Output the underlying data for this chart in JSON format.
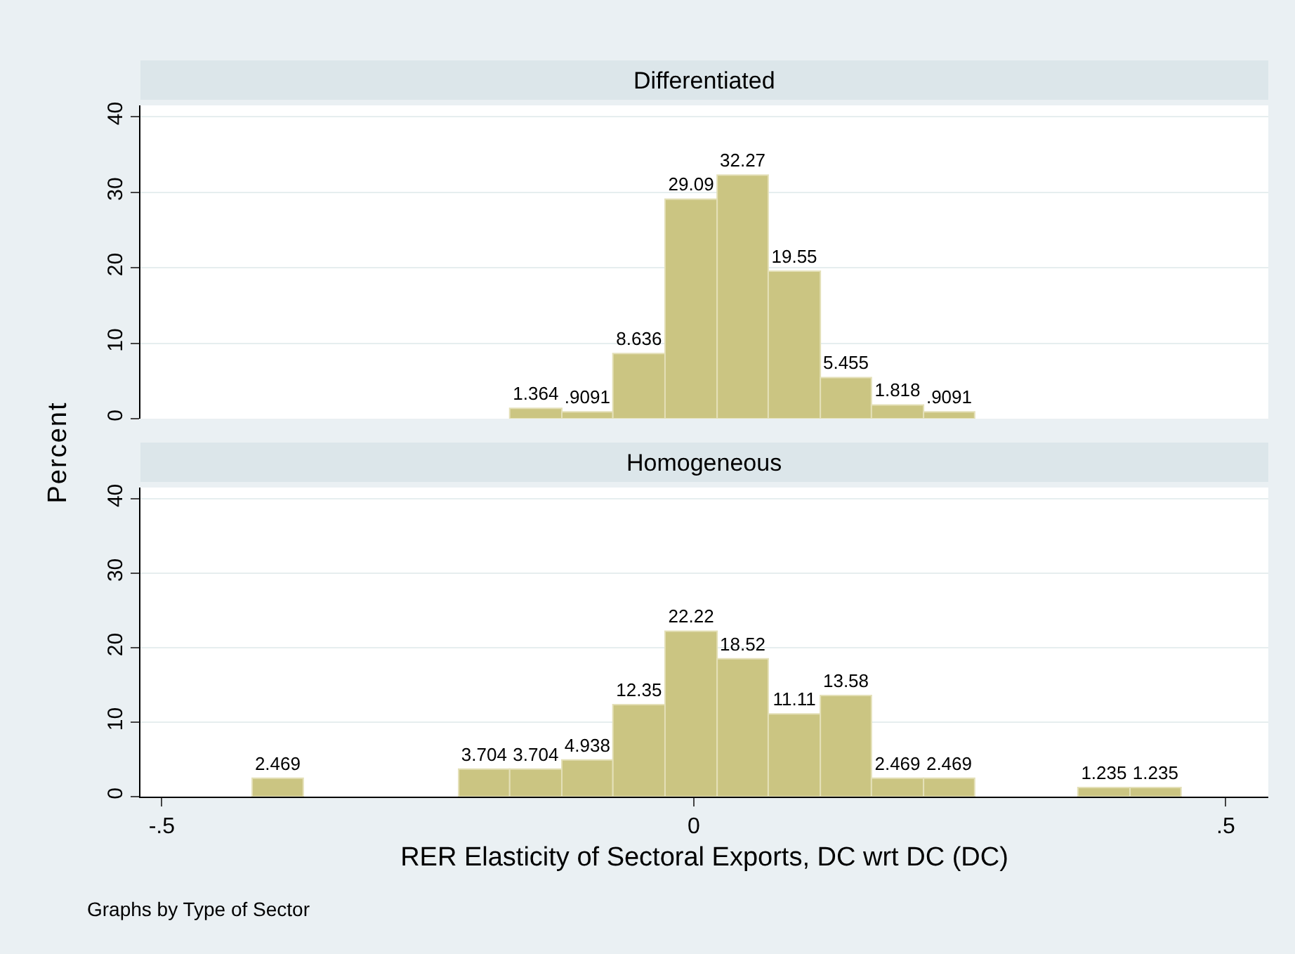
{
  "chart_data": [
    {
      "type": "histogram",
      "title": "Differentiated",
      "ylabel": "Percent",
      "color": "#cbc582",
      "bins": [
        -0.173,
        -0.124,
        -0.076,
        -0.027,
        0.022,
        0.07,
        0.119,
        0.167,
        0.216,
        0.264
      ],
      "values": [
        1.364,
        0.9091,
        8.636,
        29.09,
        32.27,
        19.55,
        5.455,
        1.818,
        0.9091
      ],
      "value_labels": [
        "1.364",
        ".9091",
        "8.636",
        "29.09",
        "32.27",
        "19.55",
        "5.455",
        "1.818",
        ".9091"
      ],
      "xlim": [
        -0.52,
        0.54
      ],
      "ylim": [
        0,
        41.5
      ],
      "yticks": [
        0,
        10,
        20,
        30,
        40
      ],
      "grid": "y",
      "tick_labels": "y"
    },
    {
      "type": "histogram",
      "title": "Homogeneous",
      "xlabel": "RER Elasticity of Sectoral Exports, DC wrt DC (DC)",
      "color": "#cbc582",
      "bins": [
        -0.415,
        -0.367,
        -0.221,
        -0.173,
        -0.124,
        -0.076,
        -0.027,
        0.022,
        0.07,
        0.119,
        0.167,
        0.216,
        0.264,
        0.361,
        0.41,
        0.458
      ],
      "values": [
        2.469,
        0,
        3.704,
        3.704,
        4.938,
        12.35,
        22.22,
        18.52,
        11.11,
        13.58,
        2.469,
        2.469,
        0,
        1.235,
        1.235
      ],
      "value_labels": [
        "2.469",
        null,
        "3.704",
        "3.704",
        "4.938",
        "12.35",
        "22.22",
        "18.52",
        "11.11",
        "13.58",
        "2.469",
        "2.469",
        null,
        "1.235",
        "1.235"
      ],
      "xlim": [
        -0.52,
        0.54
      ],
      "xticks": [
        {
          "value": -0.5,
          "label": "-.5"
        },
        0,
        {
          "value": 0.5,
          "label": ".5"
        }
      ],
      "ylim": [
        0,
        41.5
      ],
      "yticks": [
        0,
        10,
        20,
        30,
        40
      ],
      "grid": "y",
      "annotations": [
        "Graphs by Type of Sector"
      ]
    }
  ]
}
